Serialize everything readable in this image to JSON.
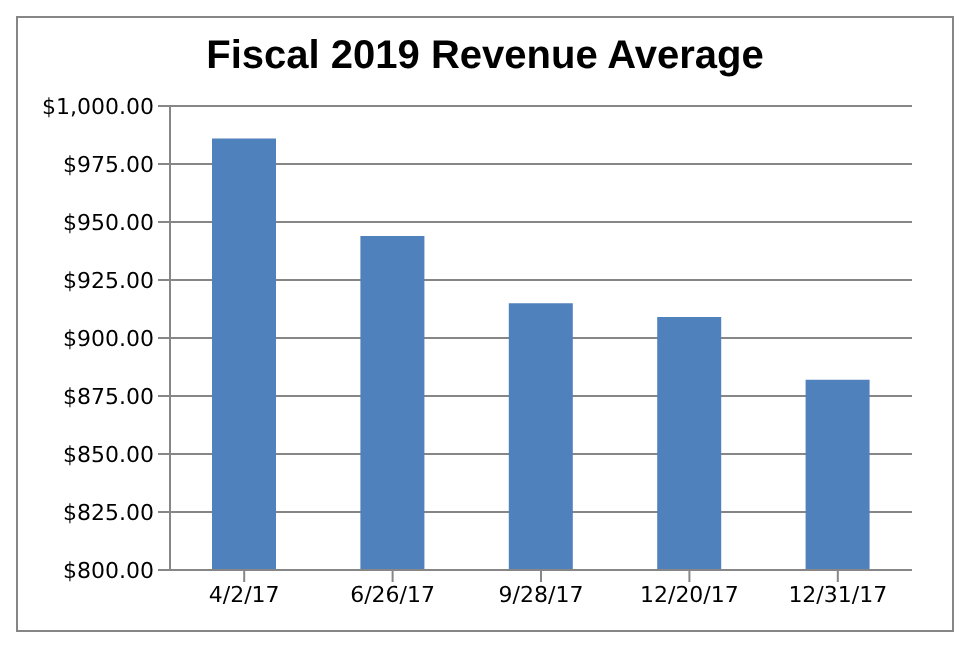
{
  "chart_data": {
    "type": "bar",
    "title": "Fiscal 2019 Revenue Average",
    "categories": [
      "4/2/17",
      "6/26/17",
      "9/28/17",
      "12/20/17",
      "12/31/17"
    ],
    "values": [
      986,
      944,
      915,
      909,
      882
    ],
    "color": "#4f81bd",
    "ylim": [
      800,
      1000
    ],
    "yticks": [
      {
        "value": 800,
        "label": "$800.00"
      },
      {
        "value": 825,
        "label": "$825.00"
      },
      {
        "value": 850,
        "label": "$850.00"
      },
      {
        "value": 875,
        "label": "$875.00"
      },
      {
        "value": 900,
        "label": "$900.00"
      },
      {
        "value": 925,
        "label": "$925.00"
      },
      {
        "value": 950,
        "label": "$950.00"
      },
      {
        "value": 975,
        "label": "$975.00"
      },
      {
        "value": 1000,
        "label": "$1,000.00"
      }
    ],
    "grid": "y",
    "legend": false
  }
}
